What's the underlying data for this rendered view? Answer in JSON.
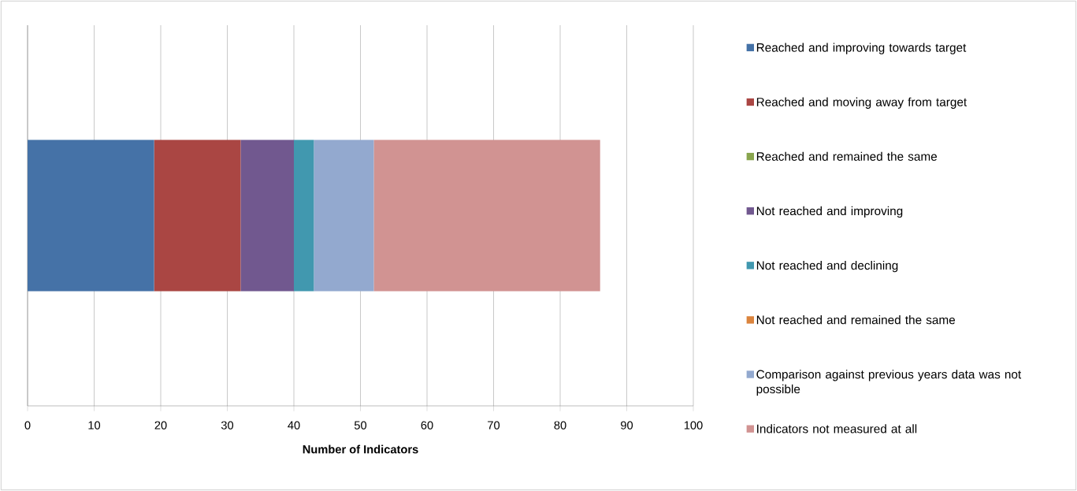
{
  "chart_data": {
    "type": "bar",
    "orientation": "horizontal",
    "stacked": true,
    "categories": [
      null
    ],
    "series": [
      {
        "name": "Reached and improving towards target",
        "color": "#4572a7",
        "values": [
          19
        ]
      },
      {
        "name": "Reached and moving away from target",
        "color": "#aa4643",
        "values": [
          13
        ]
      },
      {
        "name": "Reached and remained the same",
        "color": "#89a54e",
        "values": [
          0
        ]
      },
      {
        "name": "Not reached and improving",
        "color": "#71588f",
        "values": [
          8
        ]
      },
      {
        "name": "Not reached and declining",
        "color": "#4198af",
        "values": [
          3
        ]
      },
      {
        "name": "Not reached and remained the same",
        "color": "#db843d",
        "values": [
          0
        ]
      },
      {
        "name": "Comparison against previous years data was not possible",
        "color": "#93a9cf",
        "values": [
          9
        ]
      },
      {
        "name": "Indicators not measured at all",
        "color": "#d19392",
        "values": [
          34
        ]
      }
    ],
    "xlim": [
      0,
      100
    ],
    "xticks": [
      0,
      10,
      20,
      30,
      40,
      50,
      60,
      70,
      80,
      90,
      100
    ],
    "xlabel": "Number of Indicators",
    "grid": "x",
    "legend": "right",
    "tick_labels": "x"
  }
}
